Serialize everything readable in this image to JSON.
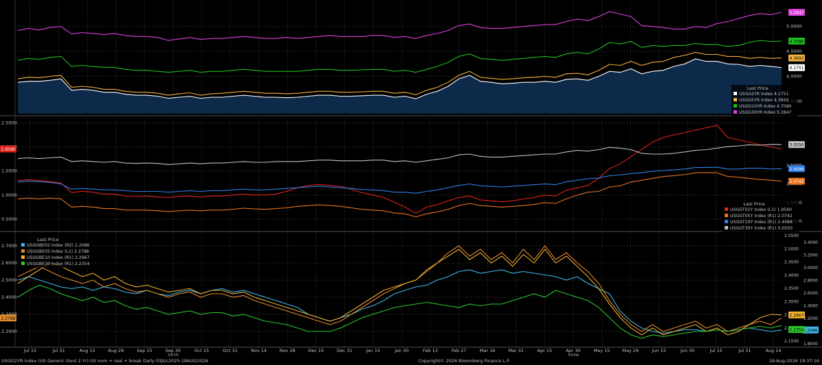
{
  "footer": {
    "left": "USGG2YR Index (US Generic Govt 2 Yr) US nom + real + break Daily 03JUL2025-18AUG2026",
    "center": "Copyright© 2026 Bloomberg Finance L.P.",
    "right": "18-Aug-2026 19:37:16"
  },
  "chart_data": [
    {
      "type": "line",
      "panel": "nominal-yields",
      "legend_title": "Last Price",
      "legend_position": "bottom-right",
      "x_ticks": [
        "Jul 15",
        "Jul 31",
        "Aug 15",
        "Aug 29",
        "Sep 15",
        "Sep 30",
        "Oct 15",
        "Oct 31",
        "Nov 14",
        "Nov 28",
        "Dec 15",
        "Dec 31",
        "Jan 15",
        "Jan 30",
        "Feb 13",
        "Feb 27",
        "Mar 16",
        "Mar 31",
        "Apr 15",
        "Apr 30",
        "May 15",
        "May 29",
        "Jun 15",
        "Jun 30",
        "Jul 15",
        "Jul 31",
        "Aug 14"
      ],
      "year_labels": [
        {
          "label": "2025",
          "at": "Sep 30"
        },
        {
          "label": "2026",
          "at": "Apr 30"
        }
      ],
      "y_ticks_right": [
        "3.5000",
        "4.0000",
        "4.5000",
        "5.0000"
      ],
      "ylim": [
        3.25,
        5.45
      ],
      "series": [
        {
          "name": "USGG2YR Index",
          "last": "4.1751",
          "color": "#ffffff",
          "fill": "#0e2a4a",
          "values": [
            3.88,
            3.9,
            3.9,
            3.92,
            3.95,
            3.72,
            3.74,
            3.72,
            3.68,
            3.68,
            3.64,
            3.62,
            3.62,
            3.6,
            3.56,
            3.58,
            3.6,
            3.56,
            3.58,
            3.58,
            3.6,
            3.62,
            3.6,
            3.58,
            3.58,
            3.57,
            3.58,
            3.6,
            3.62,
            3.62,
            3.6,
            3.6,
            3.61,
            3.62,
            3.62,
            3.58,
            3.6,
            3.55,
            3.64,
            3.7,
            3.8,
            3.95,
            4.02,
            3.9,
            3.88,
            3.85,
            3.86,
            3.88,
            3.88,
            3.9,
            3.88,
            3.94,
            3.95,
            3.92,
            4.0,
            4.1,
            4.08,
            4.15,
            4.05,
            4.1,
            4.12,
            4.2,
            4.25,
            4.35,
            4.3,
            4.3,
            4.25,
            4.24,
            4.2,
            4.22,
            4.2,
            4.1751
          ]
        },
        {
          "name": "USGG5YR Index",
          "last": "4.3692",
          "color": "#f2b33d",
          "values": [
            3.95,
            3.98,
            3.97,
            4.0,
            4.02,
            3.78,
            3.8,
            3.78,
            3.74,
            3.74,
            3.7,
            3.68,
            3.68,
            3.66,
            3.62,
            3.65,
            3.67,
            3.62,
            3.65,
            3.66,
            3.68,
            3.7,
            3.68,
            3.66,
            3.66,
            3.65,
            3.66,
            3.68,
            3.7,
            3.7,
            3.68,
            3.68,
            3.69,
            3.7,
            3.7,
            3.66,
            3.68,
            3.63,
            3.72,
            3.78,
            3.88,
            4.02,
            4.1,
            3.98,
            3.96,
            3.94,
            3.95,
            3.97,
            3.98,
            4.0,
            3.98,
            4.05,
            4.06,
            4.03,
            4.12,
            4.24,
            4.22,
            4.3,
            4.22,
            4.28,
            4.3,
            4.38,
            4.42,
            4.48,
            4.44,
            4.44,
            4.4,
            4.4,
            4.36,
            4.38,
            4.36,
            4.3692
          ]
        },
        {
          "name": "USGG10YR Index",
          "last": "4.7080",
          "color": "#1fbf1f",
          "values": [
            4.32,
            4.36,
            4.34,
            4.38,
            4.4,
            4.2,
            4.22,
            4.2,
            4.18,
            4.18,
            4.14,
            4.12,
            4.12,
            4.1,
            4.08,
            4.1,
            4.12,
            4.08,
            4.1,
            4.1,
            4.12,
            4.14,
            4.12,
            4.1,
            4.1,
            4.1,
            4.1,
            4.12,
            4.14,
            4.14,
            4.12,
            4.12,
            4.13,
            4.14,
            4.14,
            4.1,
            4.12,
            4.08,
            4.14,
            4.2,
            4.28,
            4.4,
            4.45,
            4.36,
            4.34,
            4.32,
            4.34,
            4.36,
            4.38,
            4.4,
            4.38,
            4.45,
            4.48,
            4.45,
            4.55,
            4.68,
            4.65,
            4.7,
            4.58,
            4.62,
            4.6,
            4.62,
            4.62,
            4.66,
            4.64,
            4.64,
            4.6,
            4.62,
            4.68,
            4.72,
            4.7,
            4.708
          ]
        },
        {
          "name": "USGG30YR Index",
          "last": "5.2847",
          "color": "#e040e0",
          "values": [
            4.92,
            4.96,
            4.93,
            4.98,
            5.0,
            4.85,
            4.88,
            4.86,
            4.84,
            4.86,
            4.82,
            4.8,
            4.8,
            4.78,
            4.72,
            4.75,
            4.78,
            4.74,
            4.76,
            4.76,
            4.78,
            4.8,
            4.78,
            4.76,
            4.76,
            4.78,
            4.76,
            4.78,
            4.8,
            4.82,
            4.8,
            4.8,
            4.8,
            4.82,
            4.82,
            4.78,
            4.8,
            4.76,
            4.82,
            4.86,
            4.92,
            5.02,
            5.05,
            4.98,
            4.96,
            4.96,
            4.98,
            5.0,
            5.02,
            5.04,
            5.04,
            5.1,
            5.15,
            5.12,
            5.2,
            5.3,
            5.25,
            5.2,
            5.02,
            5.0,
            4.98,
            4.95,
            4.95,
            5.0,
            4.98,
            5.06,
            5.1,
            5.16,
            5.22,
            5.26,
            5.24,
            5.2847
          ]
        }
      ]
    },
    {
      "type": "line",
      "panel": "real-yields",
      "legend_title": "Last Price",
      "legend_position": "bottom-right",
      "y_ticks_left": [
        "0.5000",
        "1.0000",
        "1.5000",
        "2.0000",
        "2.5000"
      ],
      "y_ticks_right": [
        "1.0000",
        "1.5000",
        "2.0000",
        "2.5000"
      ],
      "ylim_left": [
        0.3,
        2.55
      ],
      "ylim_right": [
        0.8,
        3.7
      ],
      "series": [
        {
          "name": "USGGT02Y Index",
          "axis": "L1",
          "last": "1.9590",
          "color": "#e0231c",
          "values": [
            1.3,
            1.32,
            1.3,
            1.28,
            1.25,
            1.05,
            1.08,
            1.06,
            1.02,
            1.02,
            0.98,
            0.97,
            0.98,
            0.96,
            0.95,
            0.97,
            0.98,
            0.96,
            0.98,
            0.98,
            1.0,
            1.02,
            1.0,
            1.0,
            1.02,
            1.08,
            1.15,
            1.2,
            1.22,
            1.2,
            1.18,
            1.12,
            1.05,
            1.0,
            0.95,
            0.85,
            0.75,
            0.62,
            0.75,
            0.8,
            0.88,
            0.95,
            0.98,
            0.9,
            0.88,
            0.86,
            0.88,
            0.92,
            0.95,
            1.0,
            0.98,
            1.1,
            1.15,
            1.2,
            1.35,
            1.55,
            1.65,
            1.8,
            1.95,
            2.1,
            2.2,
            2.25,
            2.3,
            2.35,
            2.4,
            2.45,
            2.2,
            2.15,
            2.1,
            2.05,
            2.0,
            1.959
          ]
        },
        {
          "name": "USGGT05Y Index",
          "axis": "R1",
          "last": "2.0742",
          "color": "#e8741f",
          "values": [
            1.6,
            1.62,
            1.6,
            1.62,
            1.6,
            1.38,
            1.4,
            1.38,
            1.34,
            1.34,
            1.3,
            1.3,
            1.3,
            1.28,
            1.26,
            1.28,
            1.3,
            1.28,
            1.3,
            1.3,
            1.32,
            1.35,
            1.33,
            1.32,
            1.34,
            1.36,
            1.4,
            1.42,
            1.44,
            1.42,
            1.4,
            1.36,
            1.32,
            1.3,
            1.28,
            1.22,
            1.2,
            1.12,
            1.2,
            1.25,
            1.32,
            1.42,
            1.48,
            1.42,
            1.4,
            1.38,
            1.4,
            1.42,
            1.45,
            1.5,
            1.48,
            1.6,
            1.7,
            1.78,
            1.8,
            1.92,
            1.95,
            2.05,
            2.1,
            2.15,
            2.2,
            2.22,
            2.25,
            2.3,
            2.3,
            2.3,
            2.2,
            2.18,
            2.15,
            2.12,
            2.1,
            2.0742
          ]
        },
        {
          "name": "USGGT10Y Index",
          "axis": "R1",
          "last": "2.4096",
          "color": "#2f7fe8",
          "values": [
            2.05,
            2.08,
            2.06,
            2.04,
            2.0,
            1.86,
            1.88,
            1.86,
            1.84,
            1.84,
            1.82,
            1.8,
            1.8,
            1.8,
            1.78,
            1.8,
            1.82,
            1.8,
            1.82,
            1.82,
            1.84,
            1.86,
            1.84,
            1.84,
            1.86,
            1.88,
            1.9,
            1.92,
            1.94,
            1.92,
            1.9,
            1.88,
            1.85,
            1.84,
            1.82,
            1.78,
            1.78,
            1.75,
            1.8,
            1.84,
            1.9,
            1.96,
            2.0,
            1.95,
            1.94,
            1.92,
            1.94,
            1.96,
            1.98,
            2.0,
            1.98,
            2.06,
            2.1,
            2.14,
            2.16,
            2.22,
            2.24,
            2.28,
            2.3,
            2.34,
            2.36,
            2.38,
            2.4,
            2.44,
            2.44,
            2.45,
            2.4,
            2.4,
            2.42,
            2.42,
            2.4,
            2.4096
          ]
        },
        {
          "name": "USGGT30Y Index",
          "axis": "R1",
          "last": "3.0550",
          "color": "#c0c0c0",
          "values": [
            2.68,
            2.7,
            2.68,
            2.7,
            2.72,
            2.6,
            2.62,
            2.6,
            2.58,
            2.6,
            2.56,
            2.55,
            2.56,
            2.55,
            2.52,
            2.54,
            2.56,
            2.54,
            2.56,
            2.56,
            2.58,
            2.6,
            2.58,
            2.58,
            2.6,
            2.6,
            2.6,
            2.62,
            2.64,
            2.64,
            2.62,
            2.62,
            2.62,
            2.64,
            2.64,
            2.6,
            2.62,
            2.58,
            2.62,
            2.66,
            2.7,
            2.78,
            2.8,
            2.74,
            2.72,
            2.72,
            2.74,
            2.76,
            2.78,
            2.8,
            2.8,
            2.86,
            2.9,
            2.88,
            2.92,
            2.98,
            2.96,
            2.92,
            2.82,
            2.8,
            2.8,
            2.82,
            2.86,
            2.9,
            2.92,
            2.96,
            3.0,
            3.02,
            3.05,
            3.04,
            3.06,
            3.055
          ]
        }
      ]
    },
    {
      "type": "line",
      "panel": "breakevens",
      "legend_title": "Last Price",
      "legend_position": "top-left",
      "y_ticks_left": [
        "2.2000",
        "2.3000",
        "2.4000",
        "2.5000",
        "2.6000",
        "2.7000"
      ],
      "y_ticks_right_1": [
        "2.1500",
        "2.2000",
        "2.2500",
        "2.3000",
        "2.3500",
        "2.4000",
        "2.4500",
        "2.5000",
        "2.5500"
      ],
      "y_ticks_right_2": [
        "1.8000",
        "2.0000",
        "2.2000",
        "2.4000",
        "2.6000",
        "2.8000",
        "3.0000",
        "3.2000",
        "3.4000"
      ],
      "ylim_left": [
        2.12,
        2.76
      ],
      "series": [
        {
          "name": "USGGBE02 Index",
          "axis": "R2",
          "last": "2.2086",
          "color": "#3fb8e8",
          "values": [
            2.5,
            2.52,
            2.5,
            2.48,
            2.46,
            2.45,
            2.46,
            2.44,
            2.46,
            2.45,
            2.43,
            2.42,
            2.44,
            2.42,
            2.41,
            2.43,
            2.44,
            2.42,
            2.44,
            2.45,
            2.43,
            2.44,
            2.42,
            2.4,
            2.38,
            2.36,
            2.34,
            2.3,
            2.28,
            2.26,
            2.28,
            2.3,
            2.33,
            2.35,
            2.38,
            2.42,
            2.44,
            2.46,
            2.47,
            2.5,
            2.52,
            2.55,
            2.56,
            2.54,
            2.55,
            2.56,
            2.54,
            2.55,
            2.54,
            2.53,
            2.52,
            2.5,
            2.52,
            2.48,
            2.45,
            2.42,
            2.32,
            2.26,
            2.22,
            2.2,
            2.19,
            2.2,
            2.21,
            2.21,
            2.2,
            2.21,
            2.2,
            2.21,
            2.22,
            2.21,
            2.2,
            2.2086
          ]
        },
        {
          "name": "USGGBE05 Index",
          "axis": "L1",
          "last": "2.2788",
          "color": "#e38b2c",
          "values": [
            2.52,
            2.55,
            2.58,
            2.55,
            2.52,
            2.5,
            2.48,
            2.5,
            2.46,
            2.48,
            2.45,
            2.43,
            2.44,
            2.42,
            2.4,
            2.42,
            2.43,
            2.4,
            2.42,
            2.42,
            2.4,
            2.41,
            2.38,
            2.36,
            2.34,
            2.32,
            2.3,
            2.28,
            2.26,
            2.24,
            2.26,
            2.3,
            2.34,
            2.38,
            2.42,
            2.45,
            2.48,
            2.5,
            2.56,
            2.6,
            2.66,
            2.7,
            2.64,
            2.68,
            2.62,
            2.66,
            2.6,
            2.68,
            2.62,
            2.7,
            2.62,
            2.66,
            2.6,
            2.55,
            2.48,
            2.38,
            2.3,
            2.24,
            2.2,
            2.24,
            2.2,
            2.22,
            2.24,
            2.26,
            2.22,
            2.24,
            2.2,
            2.22,
            2.24,
            2.26,
            2.24,
            2.2788
          ]
        },
        {
          "name": "USGGBE10 Index",
          "axis": "R1",
          "last": "2.2967",
          "color": "#f0b030",
          "values": [
            2.48,
            2.52,
            2.56,
            2.6,
            2.58,
            2.55,
            2.52,
            2.54,
            2.5,
            2.52,
            2.48,
            2.46,
            2.47,
            2.45,
            2.43,
            2.44,
            2.45,
            2.42,
            2.44,
            2.44,
            2.42,
            2.43,
            2.4,
            2.38,
            2.36,
            2.34,
            2.32,
            2.3,
            2.28,
            2.26,
            2.28,
            2.32,
            2.36,
            2.4,
            2.44,
            2.46,
            2.48,
            2.5,
            2.55,
            2.6,
            2.64,
            2.68,
            2.62,
            2.66,
            2.6,
            2.64,
            2.58,
            2.65,
            2.6,
            2.68,
            2.6,
            2.64,
            2.58,
            2.52,
            2.45,
            2.36,
            2.28,
            2.22,
            2.18,
            2.22,
            2.18,
            2.2,
            2.22,
            2.24,
            2.2,
            2.22,
            2.18,
            2.2,
            2.24,
            2.28,
            2.3,
            2.2967
          ]
        },
        {
          "name": "USGGBE30 Index",
          "axis": "R1",
          "last": "2.2354",
          "color": "#2ec82e",
          "values": [
            2.4,
            2.44,
            2.47,
            2.45,
            2.42,
            2.4,
            2.38,
            2.4,
            2.37,
            2.38,
            2.35,
            2.33,
            2.34,
            2.32,
            2.3,
            2.31,
            2.32,
            2.3,
            2.31,
            2.31,
            2.29,
            2.3,
            2.28,
            2.26,
            2.25,
            2.24,
            2.22,
            2.2,
            2.2,
            2.2,
            2.22,
            2.25,
            2.28,
            2.3,
            2.32,
            2.34,
            2.35,
            2.36,
            2.37,
            2.36,
            2.35,
            2.34,
            2.36,
            2.35,
            2.36,
            2.36,
            2.38,
            2.4,
            2.42,
            2.4,
            2.44,
            2.42,
            2.4,
            2.38,
            2.34,
            2.28,
            2.22,
            2.18,
            2.16,
            2.18,
            2.17,
            2.18,
            2.19,
            2.2,
            2.2,
            2.21,
            2.2,
            2.21,
            2.22,
            2.23,
            2.22,
            2.2354
          ]
        }
      ]
    }
  ]
}
